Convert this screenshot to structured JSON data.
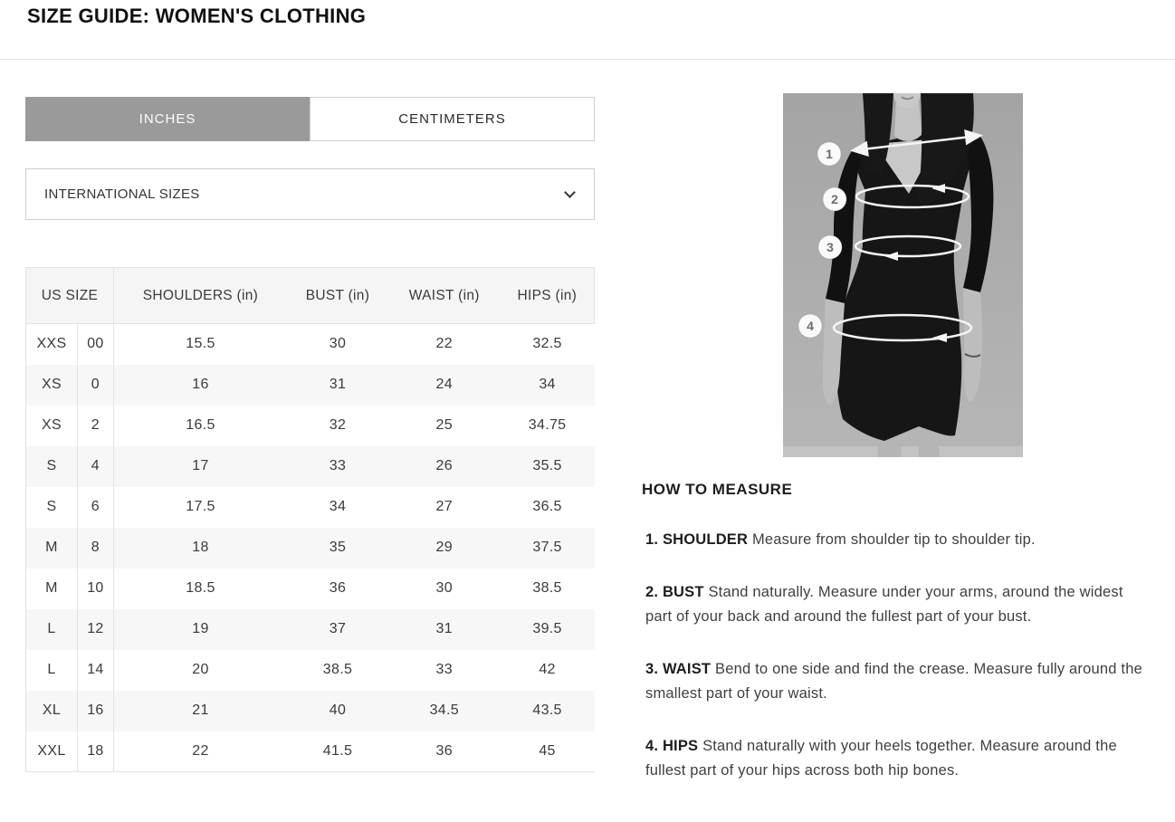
{
  "page": {
    "title": "SIZE GUIDE: WOMEN'S CLOTHING"
  },
  "units_tabs": {
    "active": "INCHES",
    "inches_label": "INCHES",
    "centimeters_label": "CENTIMETERS"
  },
  "region_select": {
    "value": "INTERNATIONAL SIZES"
  },
  "size_table": {
    "headers": {
      "us_size": "US SIZE",
      "shoulders": "SHOULDERS (in)",
      "bust": "BUST (in)",
      "waist": "WAIST (in)",
      "hips": "HIPS (in)"
    },
    "rows": [
      {
        "size": "XXS",
        "num": "00",
        "shoulders": "15.5",
        "bust": "30",
        "waist": "22",
        "hips": "32.5"
      },
      {
        "size": "XS",
        "num": "0",
        "shoulders": "16",
        "bust": "31",
        "waist": "24",
        "hips": "34"
      },
      {
        "size": "XS",
        "num": "2",
        "shoulders": "16.5",
        "bust": "32",
        "waist": "25",
        "hips": "34.75"
      },
      {
        "size": "S",
        "num": "4",
        "shoulders": "17",
        "bust": "33",
        "waist": "26",
        "hips": "35.5"
      },
      {
        "size": "S",
        "num": "6",
        "shoulders": "17.5",
        "bust": "34",
        "waist": "27",
        "hips": "36.5"
      },
      {
        "size": "M",
        "num": "8",
        "shoulders": "18",
        "bust": "35",
        "waist": "29",
        "hips": "37.5"
      },
      {
        "size": "M",
        "num": "10",
        "shoulders": "18.5",
        "bust": "36",
        "waist": "30",
        "hips": "38.5"
      },
      {
        "size": "L",
        "num": "12",
        "shoulders": "19",
        "bust": "37",
        "waist": "31",
        "hips": "39.5"
      },
      {
        "size": "L",
        "num": "14",
        "shoulders": "20",
        "bust": "38.5",
        "waist": "33",
        "hips": "42"
      },
      {
        "size": "XL",
        "num": "16",
        "shoulders": "21",
        "bust": "40",
        "waist": "34.5",
        "hips": "43.5"
      },
      {
        "size": "XXL",
        "num": "18",
        "shoulders": "22",
        "bust": "41.5",
        "waist": "36",
        "hips": "45"
      }
    ]
  },
  "measure_guide": {
    "heading": "HOW TO MEASURE",
    "steps": [
      {
        "lead": "1. SHOULDER",
        "text": "Measure from shoulder tip to shoulder tip."
      },
      {
        "lead": "2. BUST",
        "text": "Stand naturally. Measure under your arms, around the widest part of your back and around the fullest part of your bust."
      },
      {
        "lead": "3. WAIST",
        "text": "Bend to one side and find the crease. Measure fully around the smallest part of your waist."
      },
      {
        "lead": "4. HIPS",
        "text": "Stand naturally with your heels together. Measure around the fullest part of your hips across both hip bones."
      }
    ]
  },
  "figure": {
    "markers": [
      "1",
      "2",
      "3",
      "4"
    ]
  },
  "colors": {
    "active_tab_bg": "#9a9a9a",
    "table_header_bg": "#f5f5f5",
    "row_stripe": "#f7f7f7",
    "border": "#e3e3e3",
    "text": "#3a3a3a"
  }
}
